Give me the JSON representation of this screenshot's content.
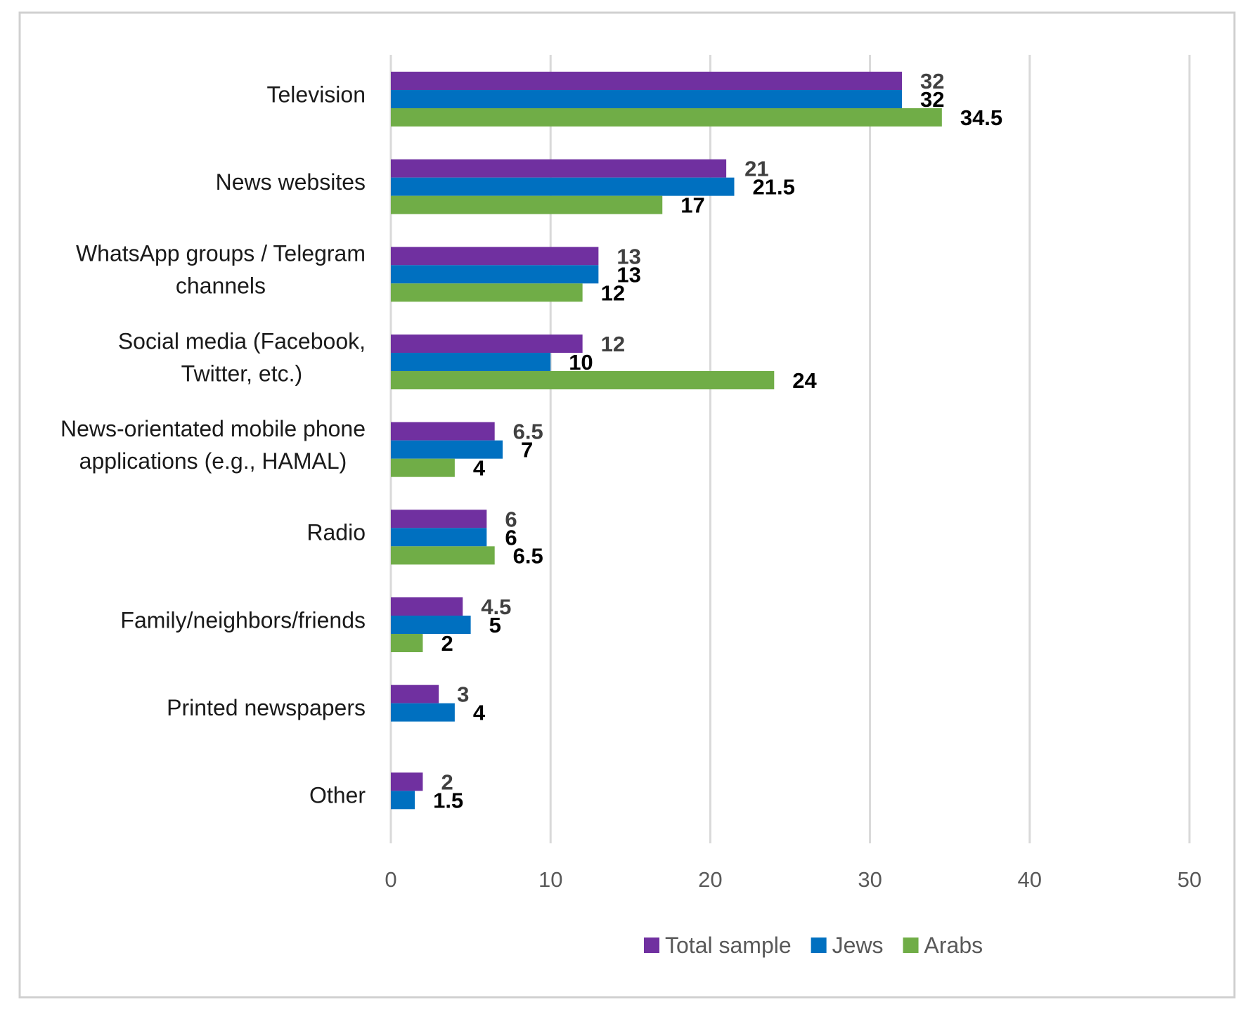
{
  "chart_data": {
    "type": "bar",
    "orientation": "horizontal",
    "title": "",
    "xlabel": "",
    "ylabel": "",
    "xlim": [
      0,
      50
    ],
    "xticks": [
      0,
      10,
      20,
      30,
      40,
      50
    ],
    "grid": "vertical",
    "legend_position": "bottom",
    "categories": [
      "Television",
      "News websites",
      "WhatsApp groups / Telegram channels",
      "Social media (Facebook, Twitter, etc.)",
      "News-orientated mobile phone applications (e.g., HAMAL)",
      "Radio",
      "Family/neighbors/friends",
      "Printed newspapers",
      "Other"
    ],
    "category_lines": [
      [
        "Television"
      ],
      [
        "News websites"
      ],
      [
        "WhatsApp groups / Telegram",
        "channels"
      ],
      [
        "Social media (Facebook,",
        "Twitter, etc.)"
      ],
      [
        "News-orientated mobile phone",
        "applications (e.g., HAMAL)"
      ],
      [
        "Radio"
      ],
      [
        "Family/neighbors/friends"
      ],
      [
        "Printed newspapers"
      ],
      [
        "Other"
      ]
    ],
    "series": [
      {
        "name": "Total sample",
        "color": "#7030a0",
        "label_color": "#404040",
        "values": [
          32,
          21,
          13,
          12,
          6.5,
          6,
          4.5,
          3,
          2
        ]
      },
      {
        "name": "Jews",
        "color": "#0070c0",
        "label_color": "#000000",
        "values": [
          32,
          21.5,
          13,
          10,
          7,
          6,
          5,
          4,
          1.5
        ]
      },
      {
        "name": "Arabs",
        "color": "#70ad47",
        "label_color": "#000000",
        "values": [
          34.5,
          17,
          12,
          24,
          4,
          6.5,
          2,
          null,
          null
        ]
      }
    ]
  }
}
